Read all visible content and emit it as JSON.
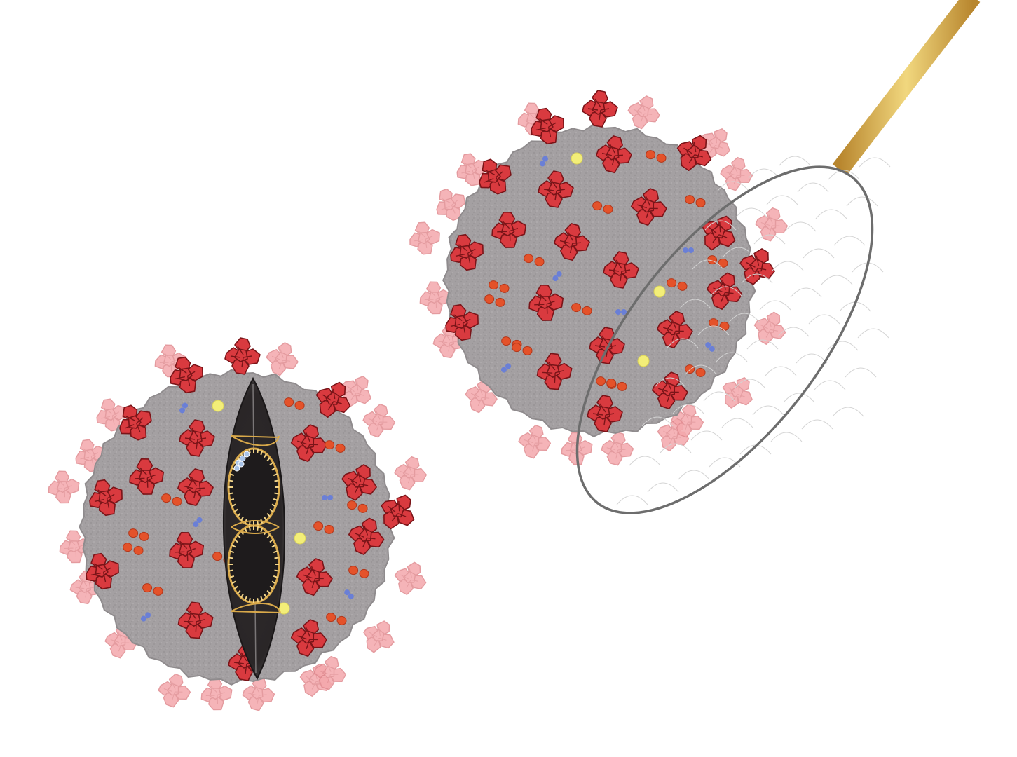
{
  "scene": {
    "colors": {
      "background": "#ffffff",
      "virus_body": "#a4a0a2",
      "virus_body_edge": "#8f8b8d",
      "spike_red": "#d93a3f",
      "spike_red_dark": "#7a1418",
      "spike_faded": "#f4a8ac",
      "dot_orange": "#e4522a",
      "dot_yellow": "#f3ee78",
      "dot_blue": "#6a7fd6",
      "dark_capsule": "#2a2627",
      "gold": "#d9a94a",
      "net_rim": "#6d6d6d",
      "handle_gold": "#d4a645"
    },
    "icons": {
      "virus_left": "coronavirus-cross-section-icon",
      "virus_right": "coronavirus-icon",
      "net": "butterfly-net-icon"
    }
  }
}
